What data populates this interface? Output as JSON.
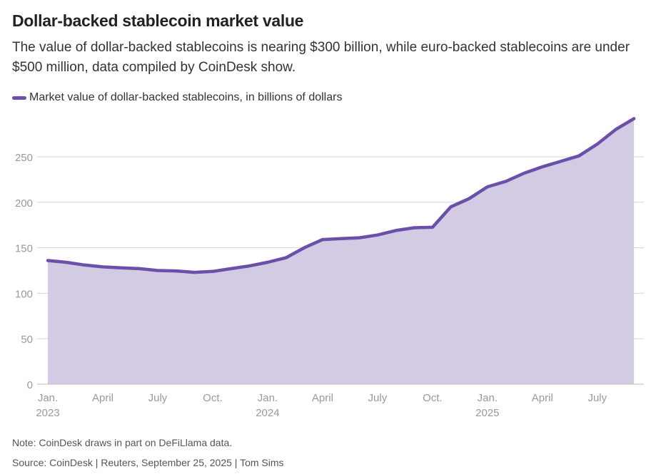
{
  "chart_data": {
    "type": "area",
    "title": "Dollar-backed stablecoin market value",
    "subtitle": "The value of dollar-backed stablecoins is nearing $300 billion, while euro-backed stablecoins are under $500 million, data compiled by CoinDesk show.",
    "xlabel": "",
    "ylabel": "",
    "ylim": [
      0,
      300
    ],
    "yticks": [
      0,
      50,
      100,
      150,
      200,
      250
    ],
    "grid": true,
    "legend_placement": "top-left",
    "xtick_labels": [
      {
        "month": "2023-01",
        "line1": "Jan.",
        "line2": "2023"
      },
      {
        "month": "2023-04",
        "line1": "April",
        "line2": ""
      },
      {
        "month": "2023-07",
        "line1": "July",
        "line2": ""
      },
      {
        "month": "2023-10",
        "line1": "Oct.",
        "line2": ""
      },
      {
        "month": "2024-01",
        "line1": "Jan.",
        "line2": "2024"
      },
      {
        "month": "2024-04",
        "line1": "April",
        "line2": ""
      },
      {
        "month": "2024-07",
        "line1": "July",
        "line2": ""
      },
      {
        "month": "2024-10",
        "line1": "Oct.",
        "line2": ""
      },
      {
        "month": "2025-01",
        "line1": "Jan.",
        "line2": "2025"
      },
      {
        "month": "2025-04",
        "line1": "April",
        "line2": ""
      },
      {
        "month": "2025-07",
        "line1": "July",
        "line2": ""
      }
    ],
    "series": [
      {
        "name": "Market value of dollar-backed stablecoins, in billions of dollars",
        "color": "#6b4fa8",
        "fill": "#d3cbe3",
        "x": [
          "2023-01",
          "2023-02",
          "2023-03",
          "2023-04",
          "2023-05",
          "2023-06",
          "2023-07",
          "2023-08",
          "2023-09",
          "2023-10",
          "2023-11",
          "2023-12",
          "2024-01",
          "2024-02",
          "2024-03",
          "2024-04",
          "2024-05",
          "2024-06",
          "2024-07",
          "2024-08",
          "2024-09",
          "2024-10",
          "2024-11",
          "2024-12",
          "2025-01",
          "2025-02",
          "2025-03",
          "2025-04",
          "2025-05",
          "2025-06",
          "2025-07",
          "2025-08",
          "2025-09"
        ],
        "values": [
          136,
          134,
          131,
          129,
          128,
          127,
          125,
          124.5,
          123,
          124,
          127,
          130,
          134,
          139,
          150,
          159,
          160,
          161,
          164,
          169,
          172,
          172.5,
          195,
          204,
          217,
          223,
          232,
          239,
          245,
          251,
          264,
          280,
          292
        ]
      }
    ]
  },
  "footer": {
    "note": "Note: CoinDesk draws in part on DeFiLlama data.",
    "source": "Source: CoinDesk | Reuters, September 25, 2025 | Tom Sims"
  }
}
